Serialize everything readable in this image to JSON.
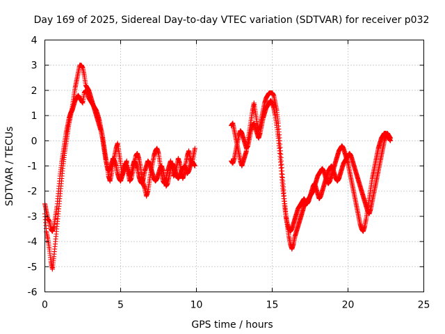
{
  "chart_data": {
    "type": "scatter",
    "title": "Day 169 of 2025, Sidereal Day-to-day VTEC variation (SDTVAR) for receiver p032",
    "xlabel": "GPS time / hours",
    "ylabel": "SDTVAR / TECUs",
    "xlim": [
      0,
      25
    ],
    "ylim": [
      -6,
      4
    ],
    "xticks": [
      0,
      5,
      10,
      15,
      20,
      25
    ],
    "yticks": [
      -6,
      -5,
      -4,
      -3,
      -2,
      -1,
      0,
      1,
      2,
      3,
      4
    ],
    "grid": true,
    "marker": "+",
    "color": "#ff0000",
    "series": [
      {
        "name": "SDTVAR",
        "segments": [
          {
            "x": [
              0.0,
              0.1,
              0.2,
              0.3,
              0.4,
              0.5,
              0.6,
              0.7,
              0.8,
              0.9,
              1.0,
              1.1,
              1.2,
              1.3,
              1.4,
              1.5,
              1.6,
              1.7,
              1.8,
              1.9,
              2.0,
              2.1,
              2.2,
              2.3,
              2.4,
              2.5,
              2.6,
              2.7,
              2.8,
              2.9,
              3.0,
              3.1,
              3.2,
              3.3,
              3.4,
              3.5,
              3.6,
              3.7,
              3.8,
              3.9,
              4.0,
              4.1,
              4.2,
              4.3,
              4.4,
              4.5,
              4.6,
              4.7,
              4.8,
              4.9,
              5.0,
              5.1,
              5.2,
              5.3,
              5.4,
              5.5,
              5.6,
              5.7,
              5.8,
              5.9,
              6.0,
              6.1,
              6.2,
              6.3,
              6.4,
              6.5,
              6.6,
              6.7,
              6.8,
              6.9,
              7.0,
              7.1,
              7.2,
              7.3,
              7.4,
              7.5,
              7.6,
              7.7,
              7.8,
              7.9,
              8.0,
              8.1,
              8.2,
              8.3,
              8.4,
              8.5,
              8.6,
              8.7,
              8.8,
              8.9,
              9.0,
              9.1,
              9.2,
              9.3,
              9.4,
              9.5,
              9.6,
              9.7,
              9.8,
              9.9
            ],
            "y": [
              -2.9,
              -3.6,
              -3.9,
              -4.3,
              -4.8,
              -5.1,
              -4.6,
              -4.0,
              -3.4,
              -2.8,
              -2.2,
              -1.6,
              -1.0,
              -0.5,
              -0.1,
              0.3,
              0.7,
              1.0,
              1.3,
              1.7,
              2.1,
              2.4,
              2.7,
              3.0,
              3.0,
              2.9,
              2.6,
              2.2,
              2.1,
              2.0,
              1.8,
              1.6,
              1.4,
              1.2,
              1.0,
              0.8,
              0.6,
              0.4,
              0.1,
              -0.3,
              -0.7,
              -1.0,
              -1.4,
              -1.6,
              -1.3,
              -0.9,
              -0.6,
              -0.3,
              -0.1,
              -0.5,
              -0.9,
              -1.4,
              -1.2,
              -1.0,
              -0.8,
              -1.3,
              -1.6,
              -1.5,
              -1.2,
              -0.9,
              -0.6,
              -0.5,
              -0.7,
              -1.0,
              -1.4,
              -1.7,
              -1.9,
              -2.2,
              -2.0,
              -1.6,
              -1.2,
              -0.9,
              -0.6,
              -0.4,
              -0.3,
              -0.5,
              -0.9,
              -1.3,
              -1.6,
              -1.7,
              -1.5,
              -1.2,
              -1.0,
              -0.8,
              -1.1,
              -1.4,
              -1.3,
              -1.0,
              -0.7,
              -0.9,
              -1.2,
              -1.5,
              -1.3,
              -0.9,
              -0.6,
              -0.4,
              -0.7,
              -0.9,
              -0.6,
              -0.3
            ]
          },
          {
            "x": [
              0.0,
              0.1,
              0.2,
              0.3,
              0.4,
              0.5,
              0.6,
              0.7,
              0.8,
              0.9,
              1.0,
              1.1,
              1.2,
              1.3,
              1.4,
              1.5,
              1.6,
              1.7,
              1.8,
              1.9,
              2.0,
              2.1,
              2.2,
              2.3,
              2.4,
              2.5,
              2.6,
              2.7,
              2.8,
              2.9,
              3.0,
              3.1,
              3.2,
              3.3,
              3.4,
              3.5,
              3.6,
              3.7,
              3.8,
              3.9,
              4.0,
              4.1,
              4.2,
              4.3,
              4.4,
              4.5,
              4.6,
              4.7,
              4.8,
              4.9,
              5.0,
              5.1,
              5.2,
              5.3,
              5.4,
              5.5,
              5.6,
              5.7,
              5.8,
              5.9,
              6.0,
              6.1,
              6.2,
              6.3,
              6.4,
              6.5,
              6.6,
              6.7,
              6.8,
              6.9,
              7.0,
              7.1,
              7.2,
              7.3,
              7.4,
              7.5,
              7.6,
              7.7,
              7.8,
              7.9,
              8.0,
              8.1,
              8.2,
              8.3,
              8.4,
              8.5,
              8.6,
              8.7,
              8.8,
              8.9,
              9.0,
              9.1,
              9.2,
              9.3,
              9.4,
              9.5,
              9.6,
              9.7,
              9.8,
              9.9
            ],
            "y": [
              -2.5,
              -2.8,
              -3.1,
              -3.2,
              -3.5,
              -3.6,
              -3.4,
              -3.0,
              -2.6,
              -2.0,
              -1.4,
              -0.9,
              -0.5,
              -0.1,
              0.3,
              0.6,
              0.9,
              1.1,
              1.2,
              1.4,
              1.6,
              1.7,
              1.8,
              1.7,
              1.6,
              1.5,
              1.9,
              2.0,
              1.9,
              1.7,
              1.6,
              1.5,
              1.4,
              1.3,
              1.2,
              1.0,
              0.8,
              0.5,
              0.2,
              -0.2,
              -0.6,
              -1.0,
              -1.2,
              -1.1,
              -0.9,
              -0.7,
              -0.8,
              -1.0,
              -1.3,
              -1.5,
              -1.6,
              -1.4,
              -1.1,
              -0.9,
              -1.0,
              -1.2,
              -1.4,
              -1.3,
              -1.0,
              -0.8,
              -0.9,
              -1.1,
              -1.4,
              -1.6,
              -1.7,
              -1.5,
              -1.2,
              -1.0,
              -0.8,
              -0.9,
              -1.1,
              -1.3,
              -1.5,
              -1.6,
              -1.5,
              -1.3,
              -1.1,
              -1.0,
              -1.2,
              -1.5,
              -1.8,
              -1.7,
              -1.4,
              -1.1,
              -0.9,
              -1.0,
              -1.2,
              -1.4,
              -1.5,
              -1.4,
              -1.2,
              -1.1,
              -1.0,
              -1.1,
              -1.3,
              -1.2,
              -1.0,
              -0.8,
              -0.9,
              -1.0
            ]
          },
          {
            "x": [
              12.3,
              12.4,
              12.5,
              12.6,
              12.7,
              12.8,
              12.9,
              13.0,
              13.1,
              13.2,
              13.3,
              13.4,
              13.5,
              13.6,
              13.7,
              13.8,
              13.9,
              14.0,
              14.1,
              14.2,
              14.3,
              14.4,
              14.5,
              14.6,
              14.7,
              14.8,
              14.9,
              15.0,
              15.1,
              15.2,
              15.3,
              15.4,
              15.5,
              15.6,
              15.7,
              15.8,
              15.9,
              16.0,
              16.1,
              16.2,
              16.3,
              16.4,
              16.5,
              16.6,
              16.7,
              16.8,
              16.9,
              17.0,
              17.1,
              17.2,
              17.3,
              17.4,
              17.5,
              17.6,
              17.7,
              17.8,
              17.9,
              18.0,
              18.1,
              18.2,
              18.3,
              18.4,
              18.5,
              18.6,
              18.7,
              18.8,
              18.9,
              19.0,
              19.1,
              19.2,
              19.3,
              19.4,
              19.5,
              19.6,
              19.7,
              19.8,
              19.9,
              20.0,
              20.1,
              20.2,
              20.3,
              20.4,
              20.5,
              20.6,
              20.7,
              20.8,
              20.9,
              21.0,
              21.1,
              21.2,
              21.3,
              21.4,
              21.5,
              21.6,
              21.7,
              21.8,
              21.9,
              22.0,
              22.1,
              22.2,
              22.3,
              22.4,
              22.5,
              22.6,
              22.7,
              22.8
            ],
            "y": [
              0.6,
              0.7,
              0.4,
              0.1,
              -0.2,
              -0.5,
              -0.8,
              -1.0,
              -0.8,
              -0.6,
              -0.4,
              0.0,
              0.4,
              0.8,
              1.2,
              1.5,
              1.1,
              0.7,
              0.4,
              0.6,
              0.9,
              1.2,
              1.5,
              1.7,
              1.8,
              1.9,
              1.9,
              1.9,
              1.8,
              1.5,
              1.2,
              0.7,
              0.0,
              -0.8,
              -1.6,
              -2.3,
              -2.9,
              -3.4,
              -3.8,
              -4.1,
              -4.3,
              -4.1,
              -3.8,
              -3.6,
              -3.4,
              -3.2,
              -3.0,
              -2.8,
              -2.6,
              -2.5,
              -2.4,
              -2.3,
              -2.2,
              -2.1,
              -2.0,
              -1.8,
              -1.6,
              -1.4,
              -1.3,
              -1.2,
              -1.1,
              -1.2,
              -1.4,
              -1.6,
              -1.7,
              -1.6,
              -1.4,
              -1.2,
              -1.0,
              -0.8,
              -0.6,
              -0.4,
              -0.3,
              -0.2,
              -0.3,
              -0.5,
              -0.7,
              -0.9,
              -1.2,
              -1.5,
              -1.8,
              -2.1,
              -2.4,
              -2.7,
              -3.0,
              -3.3,
              -3.5,
              -3.6,
              -3.4,
              -3.1,
              -2.7,
              -2.3,
              -1.9,
              -1.5,
              -1.2,
              -0.9,
              -0.6,
              -0.3,
              -0.1,
              0.1,
              0.2,
              0.3,
              0.3,
              0.2,
              0.1,
              0.0
            ]
          },
          {
            "x": [
              12.3,
              12.4,
              12.5,
              12.6,
              12.7,
              12.8,
              12.9,
              13.0,
              13.1,
              13.2,
              13.3,
              13.4,
              13.5,
              13.6,
              13.7,
              13.8,
              13.9,
              14.0,
              14.1,
              14.2,
              14.3,
              14.4,
              14.5,
              14.6,
              14.7,
              14.8,
              14.9,
              15.0,
              15.1,
              15.2,
              15.3,
              15.4,
              15.5,
              15.6,
              15.7,
              15.8,
              15.9,
              16.0,
              16.1,
              16.2,
              16.3,
              16.4,
              16.5,
              16.6,
              16.7,
              16.8,
              16.9,
              17.0,
              17.1,
              17.2,
              17.3,
              17.4,
              17.5,
              17.6,
              17.7,
              17.8,
              17.9,
              18.0,
              18.1,
              18.2,
              18.3,
              18.4,
              18.5,
              18.6,
              18.7,
              18.8,
              18.9,
              19.0,
              19.1,
              19.2,
              19.3,
              19.4,
              19.5,
              19.6,
              19.7,
              19.8,
              19.9,
              20.0,
              20.1,
              20.2,
              20.3,
              20.4,
              20.5,
              20.6,
              20.7,
              20.8,
              20.9,
              21.0,
              21.1,
              21.2,
              21.3,
              21.4,
              21.5,
              21.6,
              21.7,
              21.8,
              21.9,
              22.0,
              22.1,
              22.2,
              22.3,
              22.4,
              22.5,
              22.6,
              22.7,
              22.8
            ],
            "y": [
              -0.8,
              -0.9,
              -0.7,
              -0.4,
              -0.1,
              0.2,
              0.4,
              0.3,
              0.1,
              -0.1,
              -0.3,
              -0.2,
              0.1,
              0.4,
              0.6,
              0.7,
              0.5,
              0.3,
              0.1,
              0.3,
              0.6,
              0.9,
              1.1,
              1.3,
              1.4,
              1.5,
              1.6,
              1.5,
              1.3,
              1.0,
              0.6,
              0.1,
              -0.5,
              -1.2,
              -1.9,
              -2.5,
              -3.0,
              -3.3,
              -3.5,
              -3.6,
              -3.5,
              -3.3,
              -3.1,
              -2.9,
              -2.7,
              -2.6,
              -2.5,
              -2.4,
              -2.3,
              -2.4,
              -2.5,
              -2.4,
              -2.2,
              -2.0,
              -1.8,
              -1.7,
              -1.9,
              -2.1,
              -2.3,
              -2.2,
              -2.0,
              -1.8,
              -1.6,
              -1.4,
              -1.2,
              -1.1,
              -1.0,
              -1.1,
              -1.3,
              -1.5,
              -1.6,
              -1.5,
              -1.3,
              -1.1,
              -0.9,
              -0.8,
              -0.7,
              -0.6,
              -0.5,
              -0.6,
              -0.8,
              -1.0,
              -1.2,
              -1.4,
              -1.6,
              -1.8,
              -2.0,
              -2.2,
              -2.4,
              -2.6,
              -2.8,
              -2.9,
              -2.7,
              -2.4,
              -2.1,
              -1.8,
              -1.5,
              -1.2,
              -0.9,
              -0.6,
              -0.3,
              0.0,
              0.2,
              0.3,
              0.2,
              0.1
            ]
          }
        ]
      }
    ]
  }
}
